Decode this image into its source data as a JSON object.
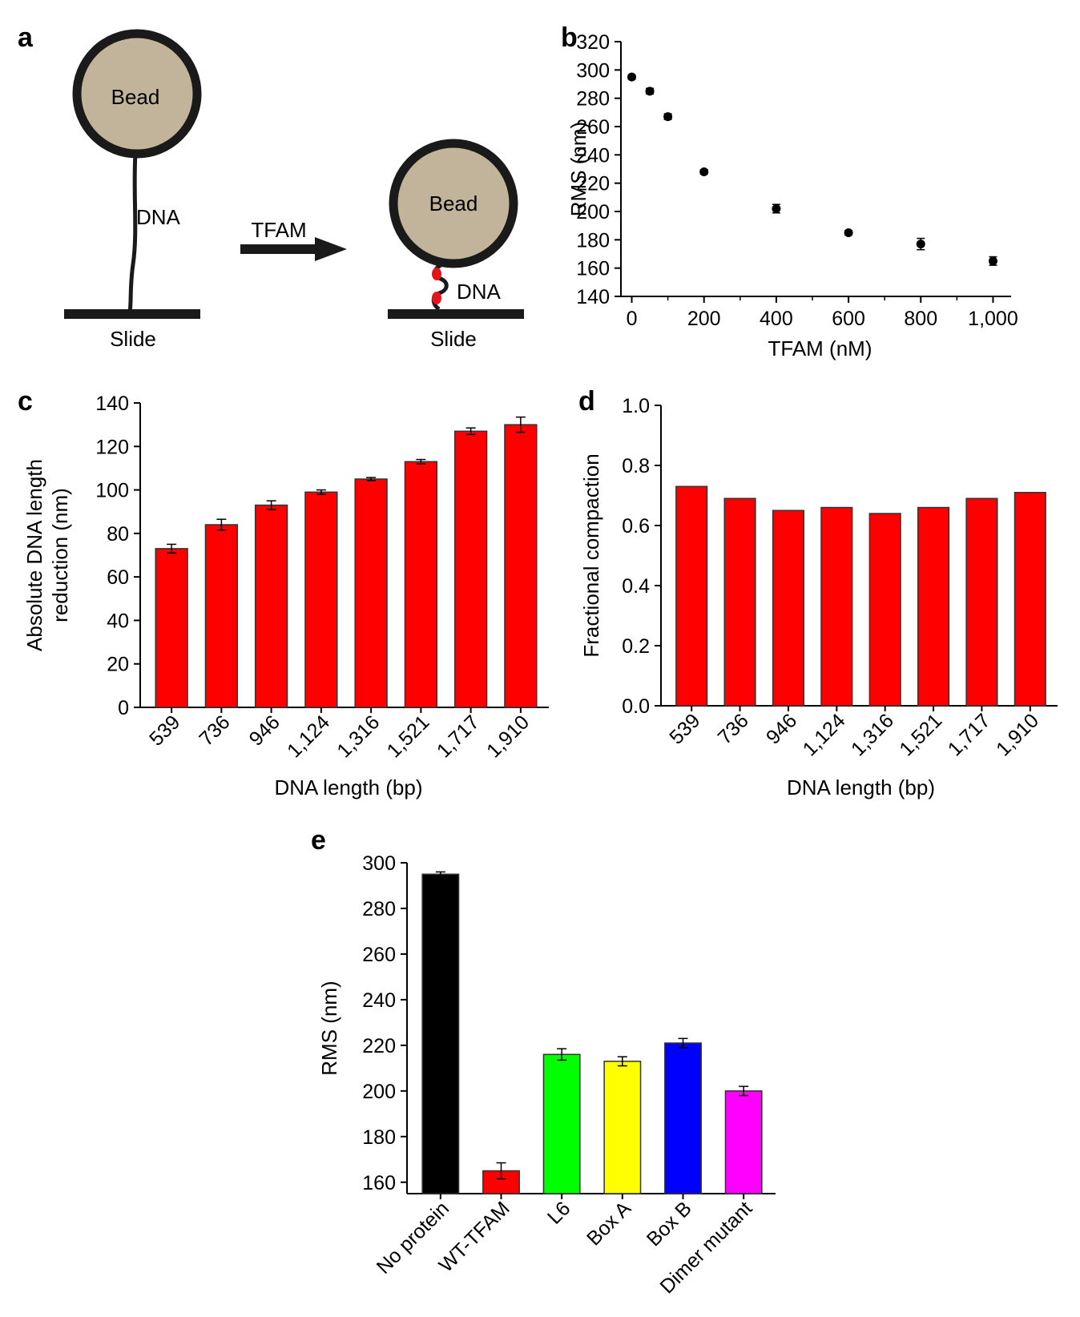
{
  "panels": {
    "a": {
      "letter": "a",
      "bead_label": "Bead",
      "dna_label": "DNA",
      "slide_label": "Slide",
      "arrow_label": "TFAM",
      "arrow_label_color": "#e8141b",
      "bead_fill": "#c2b49a",
      "dna_marker_color": "#e8141b"
    },
    "b": {
      "letter": "b"
    },
    "c": {
      "letter": "c"
    },
    "d": {
      "letter": "d"
    },
    "e": {
      "letter": "e"
    }
  },
  "chart_data": [
    {
      "panel": "b",
      "type": "scatter",
      "x": [
        0,
        50,
        100,
        200,
        400,
        600,
        800,
        1000
      ],
      "y": [
        295,
        285,
        267,
        228,
        202,
        185,
        177,
        165
      ],
      "yerr": [
        1.5,
        2,
        2,
        1.5,
        3,
        1.5,
        4,
        3
      ],
      "xlabel": "TFAM (nM)",
      "ylabel": "RMS (nm)",
      "xlim": [
        -30,
        1050
      ],
      "ylim": [
        140,
        320
      ],
      "xticks": [
        0,
        200,
        400,
        600,
        800,
        1000
      ],
      "xtick_labels": [
        "0",
        "200",
        "400",
        "600",
        "800",
        "1,000"
      ],
      "yticks": [
        140,
        160,
        180,
        200,
        220,
        240,
        260,
        280,
        300,
        320
      ],
      "marker_color": "#000000",
      "grid": false
    },
    {
      "panel": "c",
      "type": "bar",
      "categories": [
        "539",
        "736",
        "946",
        "1,124",
        "1,316",
        "1,521",
        "1,717",
        "1,910"
      ],
      "values": [
        73,
        84,
        93,
        99,
        105,
        113,
        127,
        130
      ],
      "errors": [
        2,
        2.5,
        2,
        1,
        0.7,
        1,
        1.5,
        3.5
      ],
      "xlabel": "DNA length (bp)",
      "ylabel_lines": [
        "Absolute DNA length",
        "reduction (nm)"
      ],
      "ylim": [
        0,
        140
      ],
      "yticks": [
        0,
        20,
        40,
        60,
        80,
        100,
        120,
        140
      ],
      "bar_color": "#ff0000",
      "grid": false
    },
    {
      "panel": "d",
      "type": "bar",
      "categories": [
        "539",
        "736",
        "946",
        "1,124",
        "1,316",
        "1,521",
        "1,717",
        "1,910"
      ],
      "values": [
        0.73,
        0.69,
        0.65,
        0.66,
        0.64,
        0.66,
        0.69,
        0.71
      ],
      "xlabel": "DNA length (bp)",
      "ylabel": "Fractional compaction",
      "ylim": [
        0,
        1.0
      ],
      "yticks": [
        0.0,
        0.2,
        0.4,
        0.6,
        0.8,
        1.0
      ],
      "ytick_labels": [
        "0.0",
        "0.2",
        "0.4",
        "0.6",
        "0.8",
        "1.0"
      ],
      "bar_color": "#ff0000",
      "grid": false
    },
    {
      "panel": "e",
      "type": "bar",
      "categories": [
        "No protein",
        "WT-TFAM",
        "L6",
        "Box A",
        "Box B",
        "Dimer mutant"
      ],
      "values": [
        295,
        165,
        216,
        213,
        221,
        200
      ],
      "errors": [
        1,
        3.5,
        2.5,
        2,
        2,
        2
      ],
      "colors": [
        "#000000",
        "#ff0000",
        "#00ff00",
        "#ffff00",
        "#0000ff",
        "#ff00ff"
      ],
      "ylabel": "RMS (nm)",
      "ylim": [
        155,
        300
      ],
      "yticks": [
        160,
        180,
        200,
        220,
        240,
        260,
        280,
        300
      ],
      "grid": false
    }
  ]
}
